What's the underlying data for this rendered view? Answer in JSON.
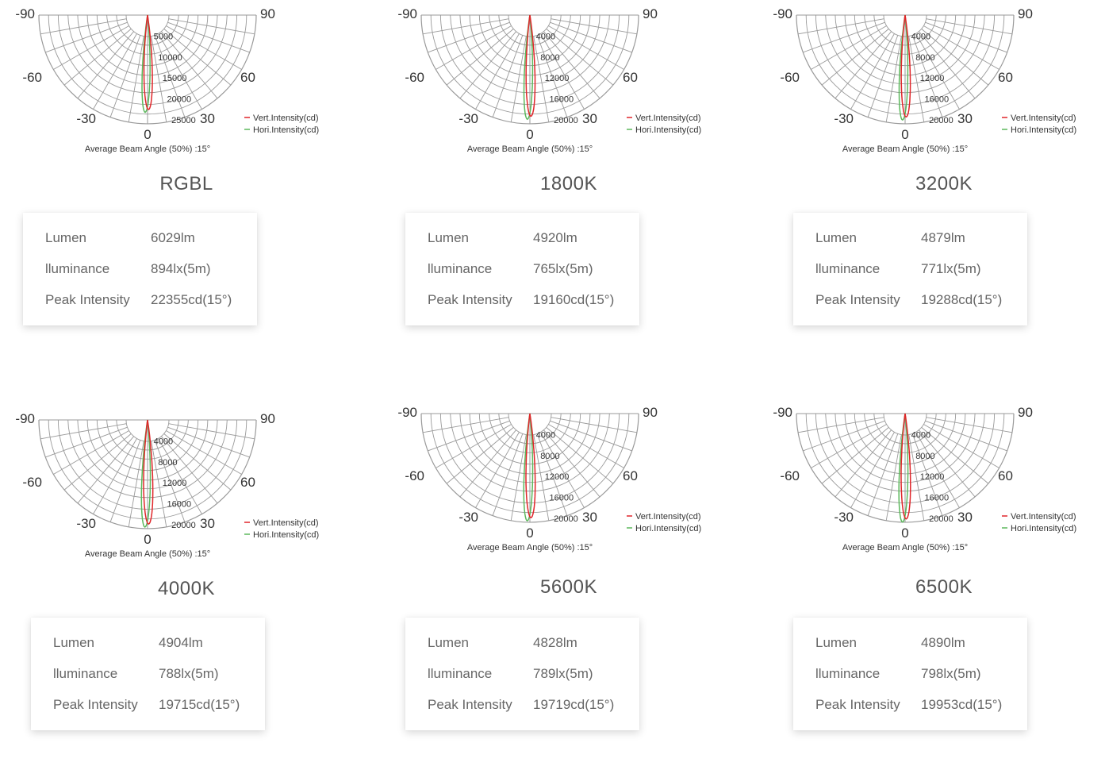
{
  "common": {
    "angle_labels": [
      "-90",
      "-60",
      "-30",
      "0",
      "30",
      "60",
      "90"
    ],
    "legend": {
      "vert": "Vert.Intensity(cd)",
      "hori": "Hori.Intensity(cd)"
    },
    "caption": "Average Beam Angle (50%) :15°",
    "row_labels": {
      "lumen": "Lumen",
      "illuminance": "lluminance",
      "peak": "Peak Intensity"
    },
    "colors": {
      "grid": "#9a9a9a",
      "vert": "#e0262a",
      "hori": "#5cb85c"
    }
  },
  "panels": [
    {
      "title": "RGBL",
      "chart_data": {
        "type": "polar",
        "radial_ticks": [
          "5000",
          "10000",
          "15000",
          "20000",
          "25000"
        ],
        "rmax": 25000,
        "series": [
          {
            "name": "Vert.Intensity(cd)",
            "peak": 22355,
            "beam_angle": 15
          },
          {
            "name": "Hori.Intensity(cd)",
            "peak": 22355,
            "beam_angle": 15
          }
        ]
      },
      "specs": {
        "lumen": "6029lm",
        "illuminance": "894lx(5m)",
        "peak": "22355cd(15°)"
      }
    },
    {
      "title": "1800K",
      "chart_data": {
        "type": "polar",
        "radial_ticks": [
          "4000",
          "8000",
          "12000",
          "16000",
          "20000"
        ],
        "rmax": 20000,
        "series": [
          {
            "name": "Vert.Intensity(cd)",
            "peak": 19160,
            "beam_angle": 15
          },
          {
            "name": "Hori.Intensity(cd)",
            "peak": 19160,
            "beam_angle": 15
          }
        ]
      },
      "specs": {
        "lumen": "4920lm",
        "illuminance": "765lx(5m)",
        "peak": "19160cd(15°)"
      }
    },
    {
      "title": "3200K",
      "chart_data": {
        "type": "polar",
        "radial_ticks": [
          "4000",
          "8000",
          "12000",
          "16000",
          "20000"
        ],
        "rmax": 20000,
        "series": [
          {
            "name": "Vert.Intensity(cd)",
            "peak": 19288,
            "beam_angle": 15
          },
          {
            "name": "Hori.Intensity(cd)",
            "peak": 19288,
            "beam_angle": 15
          }
        ]
      },
      "specs": {
        "lumen": "4879lm",
        "illuminance": "771lx(5m)",
        "peak": "19288cd(15°)"
      }
    },
    {
      "title": "4000K",
      "chart_data": {
        "type": "polar",
        "radial_ticks": [
          "4000",
          "8000",
          "12000",
          "16000",
          "20000"
        ],
        "rmax": 20000,
        "series": [
          {
            "name": "Vert.Intensity(cd)",
            "peak": 19715,
            "beam_angle": 15
          },
          {
            "name": "Hori.Intensity(cd)",
            "peak": 19715,
            "beam_angle": 15
          }
        ]
      },
      "specs": {
        "lumen": "4904lm",
        "illuminance": "788lx(5m)",
        "peak": "19715cd(15°)"
      }
    },
    {
      "title": "5600K",
      "chart_data": {
        "type": "polar",
        "radial_ticks": [
          "4000",
          "8000",
          "12000",
          "16000",
          "20000"
        ],
        "rmax": 20000,
        "series": [
          {
            "name": "Vert.Intensity(cd)",
            "peak": 19719,
            "beam_angle": 15
          },
          {
            "name": "Hori.Intensity(cd)",
            "peak": 19719,
            "beam_angle": 15
          }
        ]
      },
      "specs": {
        "lumen": "4828lm",
        "illuminance": "789lx(5m)",
        "peak": "19719cd(15°)"
      }
    },
    {
      "title": "6500K",
      "chart_data": {
        "type": "polar",
        "radial_ticks": [
          "4000",
          "8000",
          "12000",
          "16000",
          "20000"
        ],
        "rmax": 20000,
        "series": [
          {
            "name": "Vert.Intensity(cd)",
            "peak": 19953,
            "beam_angle": 15
          },
          {
            "name": "Hori.Intensity(cd)",
            "peak": 19953,
            "beam_angle": 15
          }
        ]
      },
      "specs": {
        "lumen": "4890lm",
        "illuminance": "798lx(5m)",
        "peak": "19953cd(15°)"
      }
    }
  ]
}
